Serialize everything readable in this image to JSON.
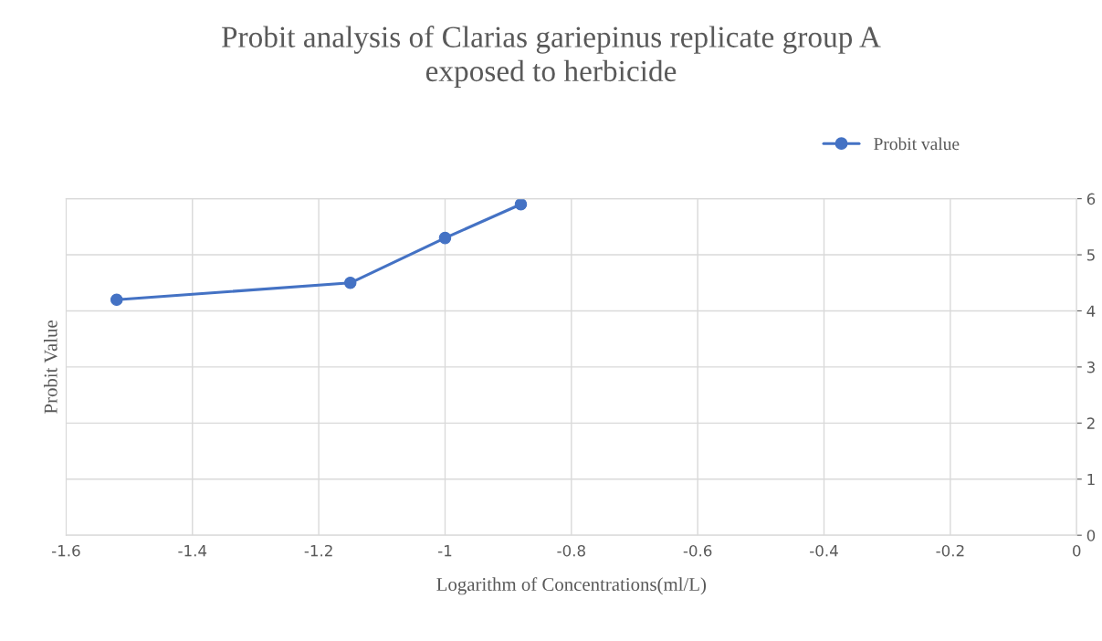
{
  "chart_data": {
    "type": "line",
    "title": "Probit analysis of Clarias gariepinus replicate group A\nexposed to herbicide",
    "xlabel": "Logarithm of Concentrations(ml/L)",
    "ylabel": "Probit Value",
    "series": [
      {
        "name": "Probit value",
        "color": "#4472c4",
        "x": [
          -1.52,
          -1.15,
          -1.0,
          -0.88
        ],
        "values": [
          4.2,
          4.5,
          5.3,
          5.9
        ]
      }
    ],
    "xlim": [
      -1.6,
      0
    ],
    "xticks": [
      -1.6,
      -1.4,
      -1.2,
      -1,
      -0.8,
      -0.6,
      -0.4,
      -0.2,
      0
    ],
    "ylim": [
      0,
      6
    ],
    "yticks": [
      0,
      1,
      2,
      3,
      4,
      5,
      6
    ],
    "grid": true,
    "legend": "top right",
    "marker": "circle",
    "line_style": "solid"
  }
}
